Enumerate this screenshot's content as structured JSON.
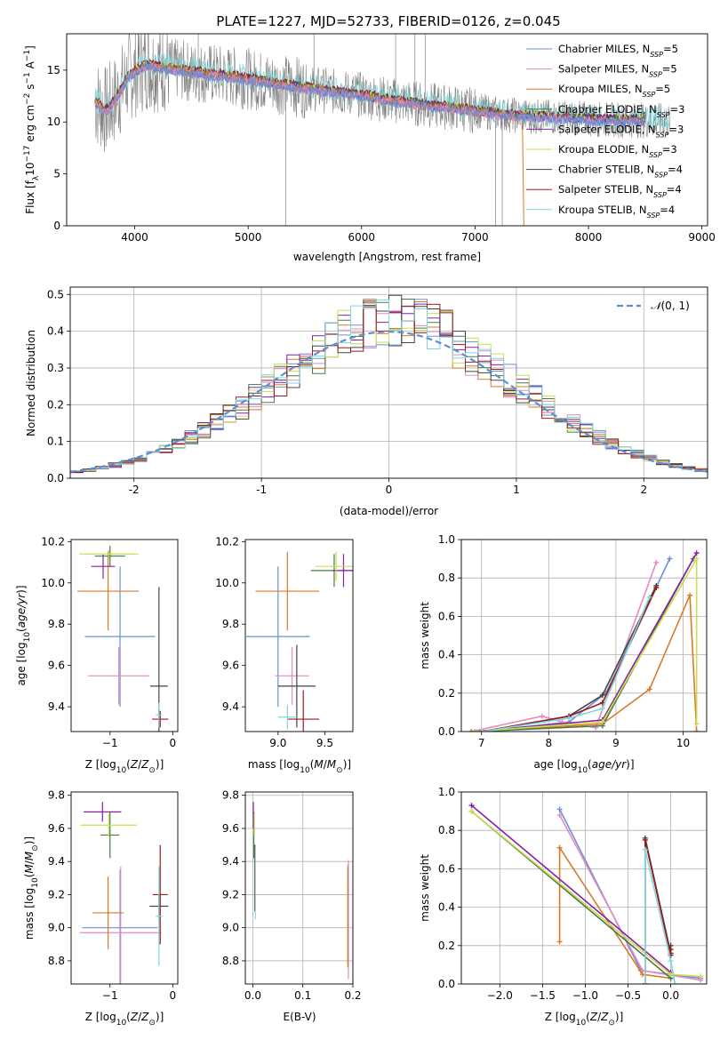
{
  "colors": [
    "#6c8ed8",
    "#e58ac0",
    "#d97a2a",
    "#4a7a4a",
    "#8b1fa8",
    "#c8e04a",
    "#444444",
    "#9b1b1b",
    "#7fd6dc"
  ],
  "legend1": [
    "Chabrier MILES, N_SSP=5",
    "Salpeter MILES, N_SSP=5",
    "Kroupa MILES, N_SSP=5",
    "Chabrier ELODIE, N_SSP=3",
    "Salpeter ELODIE, N_SSP=3",
    "Kroupa ELODIE, N_SSP=3",
    "Chabrier STELIB, N_SSP=4",
    "Salpeter STELIB, N_SSP=4",
    "Kroupa STELIB, N_SSP=4"
  ],
  "chart_data": [
    {
      "id": "spectrum",
      "type": "line",
      "title": "PLATE=1227, MJD=52733, FIBERID=0126, z=0.045",
      "xlabel": "wavelength [Angstrom, rest frame]",
      "ylabel": "Flux [f_λ10^-17 erg cm^-2 s^-1 A^-1]",
      "xlim": [
        3400,
        9050
      ],
      "ylim": [
        0,
        18.5
      ],
      "xticks": [
        4000,
        5000,
        6000,
        7000,
        8000,
        9000
      ],
      "yticks": [
        0,
        5,
        10,
        15
      ],
      "grid": false,
      "legend_position": "upper right",
      "continuum": [
        [
          3650,
          12.0
        ],
        [
          3750,
          11.0
        ],
        [
          3850,
          12.5
        ],
        [
          3950,
          14.5
        ],
        [
          4100,
          15.5
        ],
        [
          4300,
          15.2
        ],
        [
          4500,
          14.8
        ],
        [
          4700,
          14.6
        ],
        [
          4900,
          14.3
        ],
        [
          5100,
          14.0
        ],
        [
          5300,
          13.6
        ],
        [
          5500,
          13.3
        ],
        [
          5800,
          12.9
        ],
        [
          6000,
          12.6
        ],
        [
          6200,
          12.2
        ],
        [
          6400,
          11.9
        ],
        [
          6600,
          11.6
        ],
        [
          6800,
          11.4
        ],
        [
          7000,
          11.1
        ],
        [
          7200,
          10.8
        ],
        [
          7400,
          10.6
        ],
        [
          7600,
          10.5
        ],
        [
          7800,
          10.4
        ],
        [
          8000,
          10.3
        ],
        [
          8200,
          10.2
        ],
        [
          8400,
          10.2
        ],
        [
          8600,
          10.1
        ],
        [
          8700,
          10.1
        ]
      ]
    },
    {
      "id": "residuals",
      "type": "histogram",
      "xlabel": "(data-model)/error",
      "ylabel": "Normed distribution",
      "xlim": [
        -2.5,
        2.5
      ],
      "ylim": [
        0,
        0.52
      ],
      "xticks": [
        -2,
        -1,
        0,
        1,
        2
      ],
      "yticks": [
        0.0,
        0.1,
        0.2,
        0.3,
        0.4,
        0.5
      ],
      "grid": true,
      "legend": "N(0,1)",
      "legend_position": "upper right",
      "reference": {
        "name": "N(0,1)",
        "mean": 0,
        "sigma": 1,
        "style": "dashed"
      },
      "bins": {
        "start": -2.5,
        "width": 0.1,
        "count": 50
      }
    },
    {
      "id": "age_vs_Z",
      "type": "errorbar",
      "xlabel": "Z [log10(Z/Z⊙)]",
      "ylabel": "age [log10(age/yr)]",
      "xlim": [
        -1.62,
        0.08
      ],
      "ylim": [
        9.28,
        10.21
      ],
      "xticks": [
        -1,
        0
      ],
      "yticks": [
        9.4,
        9.6,
        9.8,
        10.0,
        10.2
      ],
      "points": [
        {
          "x": -0.84,
          "xerr": 0.56,
          "y": 9.74,
          "yerr": 0.34,
          "c": 0
        },
        {
          "x": -0.86,
          "xerr": 0.49,
          "y": 9.55,
          "yerr": 0.14,
          "c": 1
        },
        {
          "x": -1.03,
          "xerr": 0.49,
          "y": 9.96,
          "yerr": 0.19,
          "c": 2
        },
        {
          "x": -1.0,
          "xerr": 0.24,
          "y": 10.13,
          "yerr": 0.05,
          "c": 3
        },
        {
          "x": -1.11,
          "xerr": 0.19,
          "y": 10.08,
          "yerr": 0.06,
          "c": 4
        },
        {
          "x": -1.02,
          "xerr": 0.47,
          "y": 10.14,
          "yerr": 0.02,
          "c": 5
        },
        {
          "x": -0.22,
          "xerr": 0.14,
          "y": 9.5,
          "yerr": 0.48,
          "c": 6
        },
        {
          "x": -0.2,
          "xerr": 0.13,
          "y": 9.34,
          "yerr": 0.04,
          "c": 7
        },
        {
          "x": -0.22,
          "xerr": 0.05,
          "y": 9.36,
          "yerr": 0.06,
          "c": 8
        }
      ]
    },
    {
      "id": "age_vs_mass",
      "type": "errorbar",
      "xlabel": "mass [log10(M/M⊙)]",
      "ylabel": "",
      "xlim": [
        8.65,
        9.8
      ],
      "ylim": [
        9.28,
        10.21
      ],
      "xticks": [
        9.0,
        9.5
      ],
      "yticks": [
        9.4,
        9.6,
        9.8,
        10.0,
        10.2
      ],
      "points": [
        {
          "x": 9.0,
          "xerr": 0.34,
          "y": 9.74,
          "yerr": 0.34,
          "c": 0
        },
        {
          "x": 9.15,
          "xerr": 0.18,
          "y": 9.55,
          "yerr": 0.14,
          "c": 1
        },
        {
          "x": 9.1,
          "xerr": 0.34,
          "y": 9.96,
          "yerr": 0.19,
          "c": 2
        },
        {
          "x": 9.6,
          "xerr": 0.25,
          "y": 10.06,
          "yerr": 0.08,
          "c": 3
        },
        {
          "x": 9.7,
          "xerr": 0.12,
          "y": 10.06,
          "yerr": 0.08,
          "c": 4
        },
        {
          "x": 9.62,
          "xerr": 0.22,
          "y": 10.08,
          "yerr": 0.07,
          "c": 5
        },
        {
          "x": 9.2,
          "xerr": 0.2,
          "y": 9.5,
          "yerr": 0.2,
          "c": 6
        },
        {
          "x": 9.27,
          "xerr": 0.17,
          "y": 9.34,
          "yerr": 0.14,
          "c": 7
        },
        {
          "x": 9.1,
          "xerr": 0.1,
          "y": 9.35,
          "yerr": 0.06,
          "c": 8
        }
      ]
    },
    {
      "id": "massweight_vs_age",
      "type": "line",
      "xlabel": "age [log10(age/yr)]",
      "ylabel": "mass weight",
      "xlim": [
        6.7,
        10.35
      ],
      "ylim": [
        0,
        1.0
      ],
      "xticks": [
        7,
        8,
        9,
        10
      ],
      "yticks": [
        0.0,
        0.2,
        0.4,
        0.6,
        0.8,
        1.0
      ],
      "grid": true,
      "series": [
        {
          "c": 0,
          "x": [
            7.0,
            8.3,
            8.85,
            9.8
          ],
          "y": [
            0.0,
            0.05,
            0.2,
            0.9
          ]
        },
        {
          "c": 1,
          "x": [
            6.85,
            7.9,
            8.2,
            8.7,
            9.6
          ],
          "y": [
            0.0,
            0.08,
            0.05,
            0.02,
            0.88
          ]
        },
        {
          "c": 2,
          "x": [
            6.85,
            8.8,
            9.5,
            10.1,
            10.2
          ],
          "y": [
            0.0,
            0.04,
            0.22,
            0.71,
            0.0
          ]
        },
        {
          "c": 3,
          "x": [
            6.9,
            8.8,
            10.15
          ],
          "y": [
            0.0,
            0.03,
            0.9
          ]
        },
        {
          "c": 4,
          "x": [
            6.9,
            8.8,
            10.2
          ],
          "y": [
            0.0,
            0.06,
            0.93
          ]
        },
        {
          "c": 5,
          "x": [
            6.9,
            8.8,
            10.2,
            10.2
          ],
          "y": [
            0.0,
            0.05,
            0.9,
            0.04
          ]
        },
        {
          "c": 6,
          "x": [
            7.0,
            8.3,
            8.8,
            9.6
          ],
          "y": [
            0.0,
            0.08,
            0.19,
            0.76
          ]
        },
        {
          "c": 7,
          "x": [
            7.0,
            8.3,
            8.8,
            9.6
          ],
          "y": [
            0.0,
            0.08,
            0.15,
            0.75
          ]
        },
        {
          "c": 8,
          "x": [
            7.0,
            8.3,
            8.8,
            9.5
          ],
          "y": [
            0.0,
            0.07,
            0.12,
            0.7
          ]
        }
      ]
    },
    {
      "id": "mass_vs_Z",
      "type": "errorbar",
      "xlabel": "Z [log10(Z/Z⊙)]",
      "ylabel": "mass [log10(M/M⊙)]",
      "xlim": [
        -1.62,
        0.08
      ],
      "ylim": [
        8.66,
        9.82
      ],
      "xticks": [
        -1,
        0
      ],
      "yticks": [
        8.8,
        9.0,
        9.2,
        9.4,
        9.6,
        9.8
      ],
      "points": [
        {
          "x": -0.84,
          "xerr": 0.6,
          "y": 9.0,
          "yerr": 0.35,
          "c": 0
        },
        {
          "x": -0.83,
          "xerr": 0.65,
          "y": 8.97,
          "yerr": 0.4,
          "c": 1
        },
        {
          "x": -1.03,
          "xerr": 0.25,
          "y": 9.09,
          "yerr": 0.22,
          "c": 2
        },
        {
          "x": -1.0,
          "xerr": 0.15,
          "y": 9.56,
          "yerr": 0.14,
          "c": 3
        },
        {
          "x": -1.12,
          "xerr": 0.3,
          "y": 9.7,
          "yerr": 0.06,
          "c": 4
        },
        {
          "x": -1.02,
          "xerr": 0.45,
          "y": 9.62,
          "yerr": 0.07,
          "c": 5
        },
        {
          "x": -0.22,
          "xerr": 0.15,
          "y": 9.13,
          "yerr": 0.07,
          "c": 6
        },
        {
          "x": -0.2,
          "xerr": 0.12,
          "y": 9.2,
          "yerr": 0.3,
          "c": 7
        },
        {
          "x": -0.22,
          "xerr": 0.05,
          "y": 9.07,
          "yerr": 0.3,
          "c": 8
        }
      ]
    },
    {
      "id": "mass_vs_EBV",
      "type": "errorbar",
      "xlabel": "E(B-V)",
      "ylabel": "",
      "xlim": [
        -0.015,
        0.2
      ],
      "ylim": [
        8.66,
        9.82
      ],
      "xticks": [
        0.0,
        0.1,
        0.2
      ],
      "yticks": [
        8.8,
        9.0,
        9.2,
        9.4,
        9.6,
        9.8
      ],
      "grid": true,
      "points": [
        {
          "x": 0.19,
          "y": 9.08,
          "yerr": 0.3,
          "c": 0
        },
        {
          "x": 0.191,
          "y": 9.05,
          "yerr": 0.36,
          "c": 1
        },
        {
          "x": 0.19,
          "y": 9.06,
          "yerr": 0.3,
          "c": 2
        },
        {
          "x": 0.002,
          "y": 9.56,
          "yerr": 0.14,
          "c": 3
        },
        {
          "x": 0.001,
          "y": 9.68,
          "yerr": 0.08,
          "c": 4
        },
        {
          "x": 0.003,
          "y": 9.62,
          "yerr": 0.07,
          "c": 5
        },
        {
          "x": 0.004,
          "y": 9.3,
          "yerr": 0.2,
          "c": 6
        },
        {
          "x": 0.004,
          "y": 9.3,
          "yerr": 0.2,
          "c": 7
        },
        {
          "x": 0.005,
          "y": 9.27,
          "yerr": 0.22,
          "c": 8
        }
      ]
    },
    {
      "id": "massweight_vs_Z",
      "type": "line",
      "xlabel": "Z [log10(Z/Z⊙)]",
      "ylabel": "mass weight",
      "xlim": [
        -2.45,
        0.42
      ],
      "ylim": [
        0,
        1.0
      ],
      "xticks": [
        -2.0,
        -1.5,
        -1.0,
        -0.5,
        0.0
      ],
      "yticks": [
        0.0,
        0.2,
        0.4,
        0.6,
        0.8,
        1.0
      ],
      "grid": true,
      "series": [
        {
          "c": 0,
          "x": [
            -1.3,
            -0.35,
            0.35
          ],
          "y": [
            0.91,
            0.07,
            0.03
          ]
        },
        {
          "c": 1,
          "x": [
            -1.3,
            -0.33,
            0.35
          ],
          "y": [
            0.88,
            0.07,
            0.02
          ]
        },
        {
          "c": 2,
          "x": [
            -1.3,
            -1.3,
            -0.33,
            0.0
          ],
          "y": [
            0.22,
            0.71,
            0.05,
            0.03
          ]
        },
        {
          "c": 3,
          "x": [
            -2.33,
            0.0
          ],
          "y": [
            0.9,
            0.03
          ]
        },
        {
          "c": 4,
          "x": [
            -2.33,
            0.0
          ],
          "y": [
            0.93,
            0.06
          ]
        },
        {
          "c": 5,
          "x": [
            -2.33,
            0.0,
            0.35
          ],
          "y": [
            0.9,
            0.05,
            0.04
          ]
        },
        {
          "c": 6,
          "x": [
            -0.3,
            -0.3,
            0.0,
            0.0
          ],
          "y": [
            0.0,
            0.76,
            0.16,
            0.2
          ]
        },
        {
          "c": 7,
          "x": [
            -0.3,
            -0.3,
            0.0,
            0.0
          ],
          "y": [
            0.0,
            0.75,
            0.15,
            0.18
          ]
        },
        {
          "c": 8,
          "x": [
            -0.3,
            -0.3,
            0.0,
            0.05
          ],
          "y": [
            0.0,
            0.7,
            0.12,
            0.0
          ]
        }
      ]
    }
  ]
}
